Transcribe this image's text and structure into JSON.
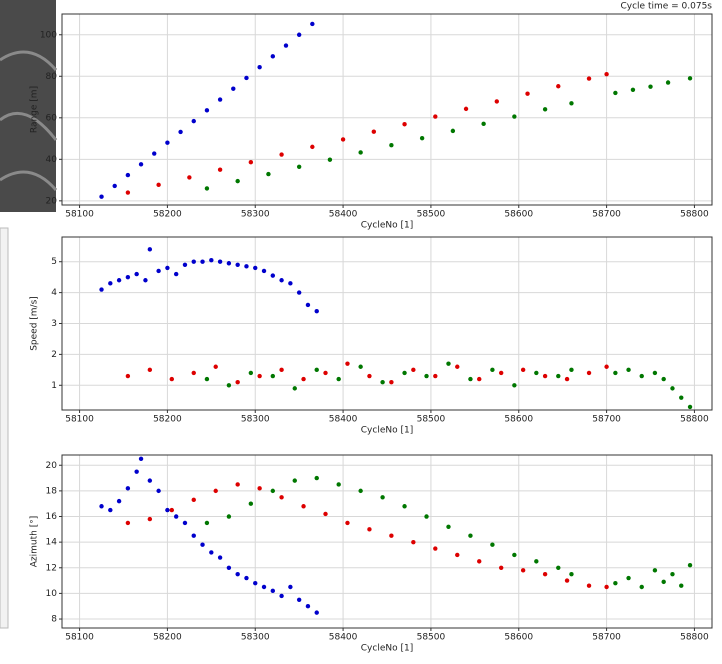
{
  "annotation": "Cycle time = 0.075s",
  "chart_data": [
    {
      "type": "scatter",
      "xlabel": "CycleNo [1]",
      "ylabel": "Range [m]",
      "grid": true,
      "xlim": [
        58080,
        58820
      ],
      "ylim": [
        18,
        110
      ],
      "xticks": [
        58100,
        58200,
        58300,
        58400,
        58500,
        58600,
        58700,
        58800
      ],
      "yticks": [
        20,
        40,
        60,
        80,
        100
      ],
      "series": [
        {
          "color": "#0000cc",
          "x": [
            58125,
            58140,
            58155,
            58170,
            58185,
            58200,
            58215,
            58230,
            58245,
            58260,
            58275,
            58290,
            58305,
            58320,
            58335,
            58350,
            58365
          ],
          "y": [
            22,
            27.2,
            32.4,
            37.6,
            42.8,
            48,
            53.2,
            58.4,
            63.6,
            68.8,
            74,
            79.2,
            84.4,
            89.6,
            94.8,
            100,
            105.2
          ]
        },
        {
          "color": "#dd0000",
          "x": [
            58155,
            58190,
            58225,
            58260,
            58295,
            58330,
            58365,
            58400,
            58435,
            58470,
            58505,
            58540,
            58575,
            58610,
            58645,
            58680,
            58700
          ],
          "y": [
            24,
            27.7,
            31.3,
            35,
            38.6,
            42.3,
            46,
            49.6,
            53.3,
            56.9,
            60.6,
            64.3,
            67.9,
            71.6,
            75.2,
            78.9,
            81
          ]
        },
        {
          "color": "#007700",
          "x": [
            58245,
            58280,
            58315,
            58350,
            58385,
            58420,
            58455,
            58490,
            58525,
            58560,
            58595,
            58630,
            58660,
            58710,
            58730,
            58750,
            58770,
            58795
          ],
          "y": [
            26,
            29.5,
            32.9,
            36.4,
            39.8,
            43.3,
            46.8,
            50.2,
            53.7,
            57.1,
            60.6,
            64.1,
            67,
            72,
            73.5,
            75,
            77,
            79
          ]
        }
      ]
    },
    {
      "type": "scatter",
      "xlabel": "CycleNo [1]",
      "ylabel": "Speed [m/s]",
      "grid": true,
      "xlim": [
        58080,
        58820
      ],
      "ylim": [
        0.2,
        5.8
      ],
      "xticks": [
        58100,
        58200,
        58300,
        58400,
        58500,
        58600,
        58700,
        58800
      ],
      "yticks": [
        1,
        2,
        3,
        4,
        5
      ],
      "series": [
        {
          "color": "#0000cc",
          "x": [
            58125,
            58135,
            58145,
            58155,
            58165,
            58175,
            58180,
            58190,
            58200,
            58210,
            58220,
            58230,
            58240,
            58250,
            58260,
            58270,
            58280,
            58290,
            58300,
            58310,
            58320,
            58330,
            58340,
            58350,
            58360,
            58370
          ],
          "y": [
            4.1,
            4.3,
            4.4,
            4.5,
            4.6,
            4.4,
            5.4,
            4.7,
            4.8,
            4.6,
            4.9,
            5.0,
            5.0,
            5.05,
            5.0,
            4.95,
            4.9,
            4.85,
            4.8,
            4.7,
            4.55,
            4.4,
            4.3,
            4.0,
            3.6,
            3.4
          ]
        },
        {
          "color": "#dd0000",
          "x": [
            58155,
            58180,
            58205,
            58230,
            58255,
            58280,
            58305,
            58330,
            58355,
            58380,
            58405,
            58430,
            58455,
            58480,
            58505,
            58530,
            58555,
            58580,
            58605,
            58630,
            58655,
            58680,
            58700
          ],
          "y": [
            1.3,
            1.5,
            1.2,
            1.4,
            1.6,
            1.1,
            1.3,
            1.5,
            1.2,
            1.4,
            1.7,
            1.3,
            1.1,
            1.5,
            1.3,
            1.6,
            1.2,
            1.4,
            1.5,
            1.3,
            1.2,
            1.4,
            1.6
          ]
        },
        {
          "color": "#007700",
          "x": [
            58245,
            58270,
            58295,
            58320,
            58345,
            58370,
            58395,
            58420,
            58445,
            58470,
            58495,
            58520,
            58545,
            58570,
            58595,
            58620,
            58645,
            58660,
            58710,
            58725,
            58740,
            58755,
            58765,
            58775,
            58785,
            58795
          ],
          "y": [
            1.2,
            1.0,
            1.4,
            1.3,
            0.9,
            1.5,
            1.2,
            1.6,
            1.1,
            1.4,
            1.3,
            1.7,
            1.2,
            1.5,
            1.0,
            1.4,
            1.3,
            1.5,
            1.4,
            1.5,
            1.3,
            1.4,
            1.2,
            0.9,
            0.6,
            0.3
          ]
        }
      ]
    },
    {
      "type": "scatter",
      "xlabel": "CycleNo [1]",
      "ylabel": "Azimuth [°]",
      "grid": true,
      "xlim": [
        58080,
        58820
      ],
      "ylim": [
        7.3,
        20.8
      ],
      "xticks": [
        58100,
        58200,
        58300,
        58400,
        58500,
        58600,
        58700,
        58800
      ],
      "yticks": [
        8,
        10,
        12,
        14,
        16,
        18,
        20
      ],
      "series": [
        {
          "color": "#0000cc",
          "x": [
            58125,
            58135,
            58145,
            58155,
            58165,
            58170,
            58180,
            58190,
            58200,
            58210,
            58220,
            58230,
            58240,
            58250,
            58260,
            58270,
            58280,
            58290,
            58300,
            58310,
            58320,
            58330,
            58340,
            58350,
            58360,
            58370
          ],
          "y": [
            16.8,
            16.5,
            17.2,
            18.2,
            19.5,
            20.5,
            18.8,
            18.0,
            16.5,
            16.0,
            15.5,
            14.5,
            13.8,
            13.2,
            12.8,
            12.0,
            11.5,
            11.2,
            10.8,
            10.5,
            10.2,
            9.8,
            10.5,
            9.5,
            9.0,
            8.5
          ]
        },
        {
          "color": "#dd0000",
          "x": [
            58155,
            58180,
            58205,
            58230,
            58255,
            58280,
            58305,
            58330,
            58355,
            58380,
            58405,
            58430,
            58455,
            58480,
            58505,
            58530,
            58555,
            58580,
            58605,
            58630,
            58655,
            58680,
            58700
          ],
          "y": [
            15.5,
            15.8,
            16.5,
            17.3,
            18.0,
            18.5,
            18.2,
            17.5,
            16.8,
            16.2,
            15.5,
            15.0,
            14.5,
            14.0,
            13.5,
            13.0,
            12.5,
            12.0,
            11.8,
            11.5,
            11.0,
            10.6,
            10.5
          ]
        },
        {
          "color": "#007700",
          "x": [
            58245,
            58270,
            58295,
            58320,
            58345,
            58370,
            58395,
            58420,
            58445,
            58470,
            58495,
            58520,
            58545,
            58570,
            58595,
            58620,
            58645,
            58660,
            58710,
            58725,
            58740,
            58755,
            58765,
            58775,
            58785,
            58795
          ],
          "y": [
            15.5,
            16.0,
            17.0,
            18.0,
            18.8,
            19.0,
            18.5,
            18.0,
            17.5,
            16.8,
            16.0,
            15.2,
            14.5,
            13.8,
            13.0,
            12.5,
            12.0,
            11.5,
            10.8,
            11.2,
            10.5,
            11.8,
            10.9,
            11.5,
            10.6,
            12.2
          ]
        }
      ]
    }
  ]
}
